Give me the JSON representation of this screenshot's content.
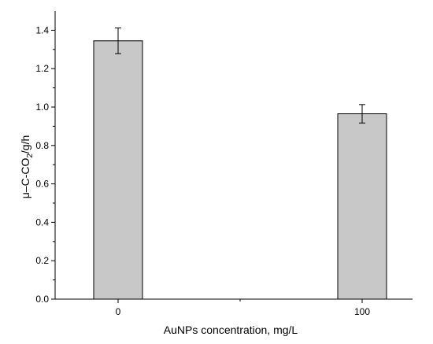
{
  "chart_data": {
    "type": "bar",
    "categories": [
      "0",
      "100"
    ],
    "values": [
      1.345,
      0.965
    ],
    "errors": [
      0.067,
      0.048
    ],
    "xlabel": "AuNPs concentration, mg/L",
    "ylabel": {
      "before": "μ–C-CO",
      "subscript": "2",
      "after": "/g/h"
    },
    "ylim": [
      0.0,
      1.5
    ],
    "yticks": [
      "0.0",
      "0.2",
      "0.4",
      "0.6",
      "0.8",
      "1.0",
      "1.2",
      "1.4"
    ],
    "grid": false,
    "legend": "none",
    "colors": {
      "bar_fill": "#c8c8c8",
      "bar_stroke": "#000000",
      "axis": "#000000"
    }
  }
}
